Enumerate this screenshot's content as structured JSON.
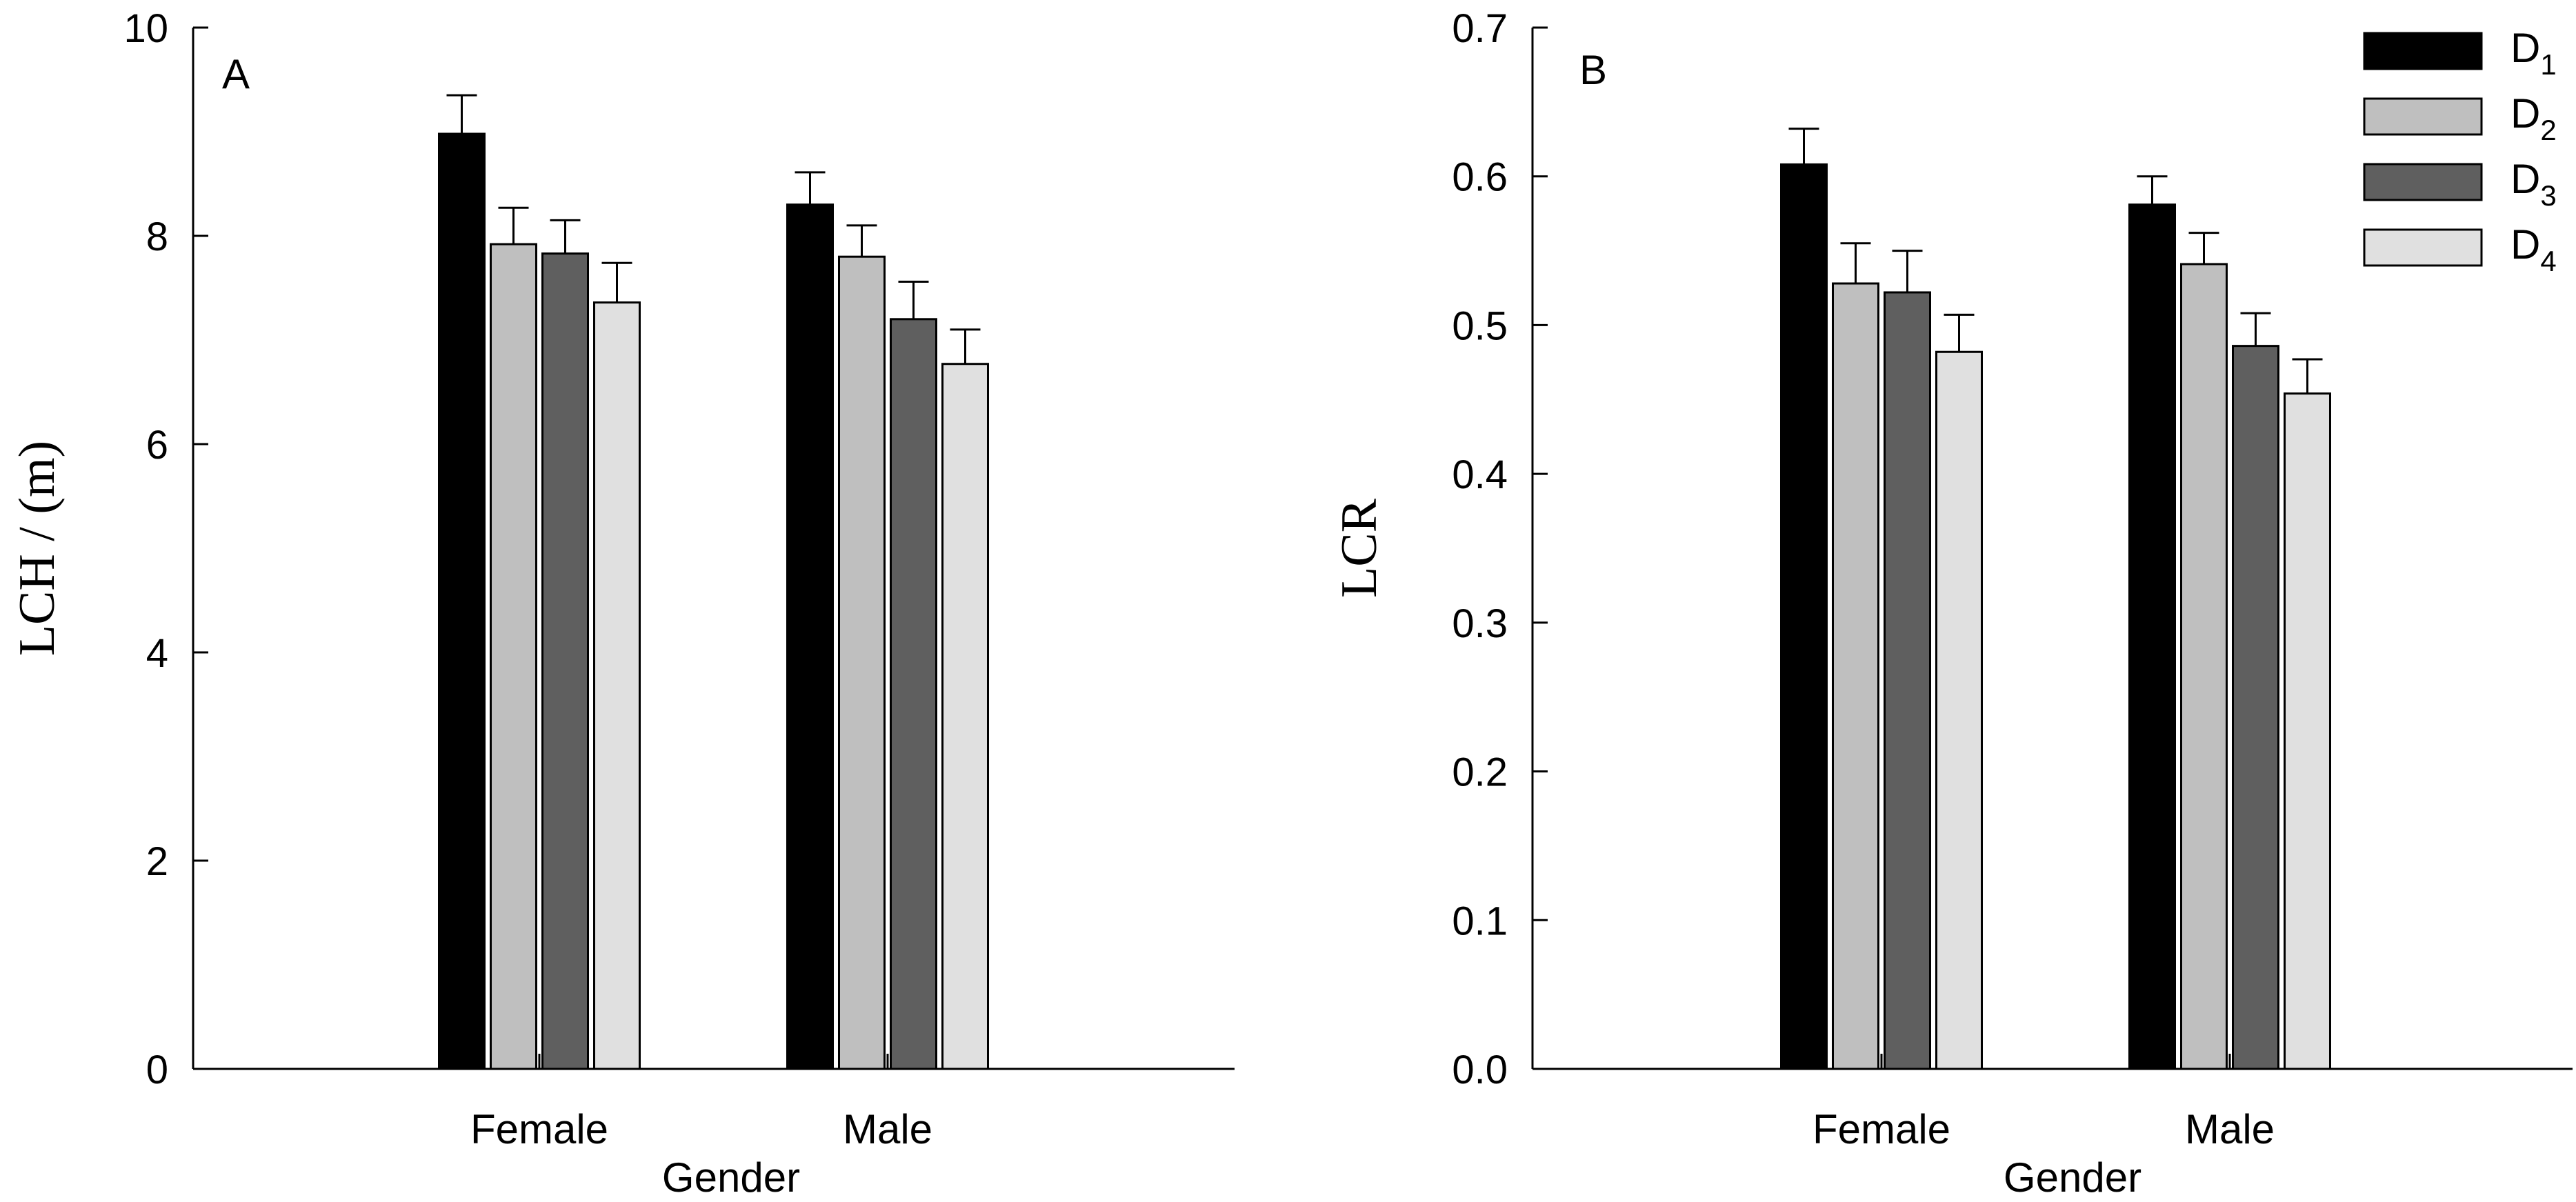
{
  "colors": {
    "D1": "#000000",
    "D2": "#bfbfbf",
    "D3": "#5f5f5f",
    "D4": "#e0e0e0",
    "axis": "#000000"
  },
  "legend": {
    "placement": "top-right",
    "items": [
      {
        "key": "D1",
        "base": "D",
        "sub": "1"
      },
      {
        "key": "D2",
        "base": "D",
        "sub": "2"
      },
      {
        "key": "D3",
        "base": "D",
        "sub": "3"
      },
      {
        "key": "D4",
        "base": "D",
        "sub": "4"
      }
    ]
  },
  "chart_data": [
    {
      "id": "A",
      "panel_label": "A",
      "type": "bar",
      "xlabel": "Gender",
      "ylabel": "LCH / (m)",
      "categories": [
        "Female",
        "Male"
      ],
      "ylim": [
        0,
        10
      ],
      "yticks": [
        0,
        2,
        4,
        6,
        8,
        10
      ],
      "ytick_labels": [
        "0",
        "2",
        "4",
        "6",
        "8",
        "10"
      ],
      "series": [
        {
          "name": "D1",
          "values": [
            8.98,
            8.3
          ],
          "errors": [
            0.37,
            0.31
          ]
        },
        {
          "name": "D2",
          "values": [
            7.92,
            7.8
          ],
          "errors": [
            0.35,
            0.3
          ]
        },
        {
          "name": "D3",
          "values": [
            7.83,
            7.2
          ],
          "errors": [
            0.32,
            0.36
          ]
        },
        {
          "name": "D4",
          "values": [
            7.36,
            6.77
          ],
          "errors": [
            0.38,
            0.33
          ]
        }
      ]
    },
    {
      "id": "B",
      "panel_label": "B",
      "type": "bar",
      "xlabel": "Gender",
      "ylabel": "LCR",
      "categories": [
        "Female",
        "Male"
      ],
      "ylim": [
        0,
        0.7
      ],
      "yticks": [
        0,
        0.1,
        0.2,
        0.3,
        0.4,
        0.5,
        0.6,
        0.7
      ],
      "ytick_labels": [
        "0.0",
        "0.1",
        "0.2",
        "0.3",
        "0.4",
        "0.5",
        "0.6",
        "0.7"
      ],
      "series": [
        {
          "name": "D1",
          "values": [
            0.608,
            0.581
          ],
          "errors": [
            0.024,
            0.019
          ]
        },
        {
          "name": "D2",
          "values": [
            0.528,
            0.541
          ],
          "errors": [
            0.027,
            0.021
          ]
        },
        {
          "name": "D3",
          "values": [
            0.522,
            0.486
          ],
          "errors": [
            0.028,
            0.022
          ]
        },
        {
          "name": "D4",
          "values": [
            0.482,
            0.454
          ],
          "errors": [
            0.025,
            0.023
          ]
        }
      ]
    }
  ]
}
